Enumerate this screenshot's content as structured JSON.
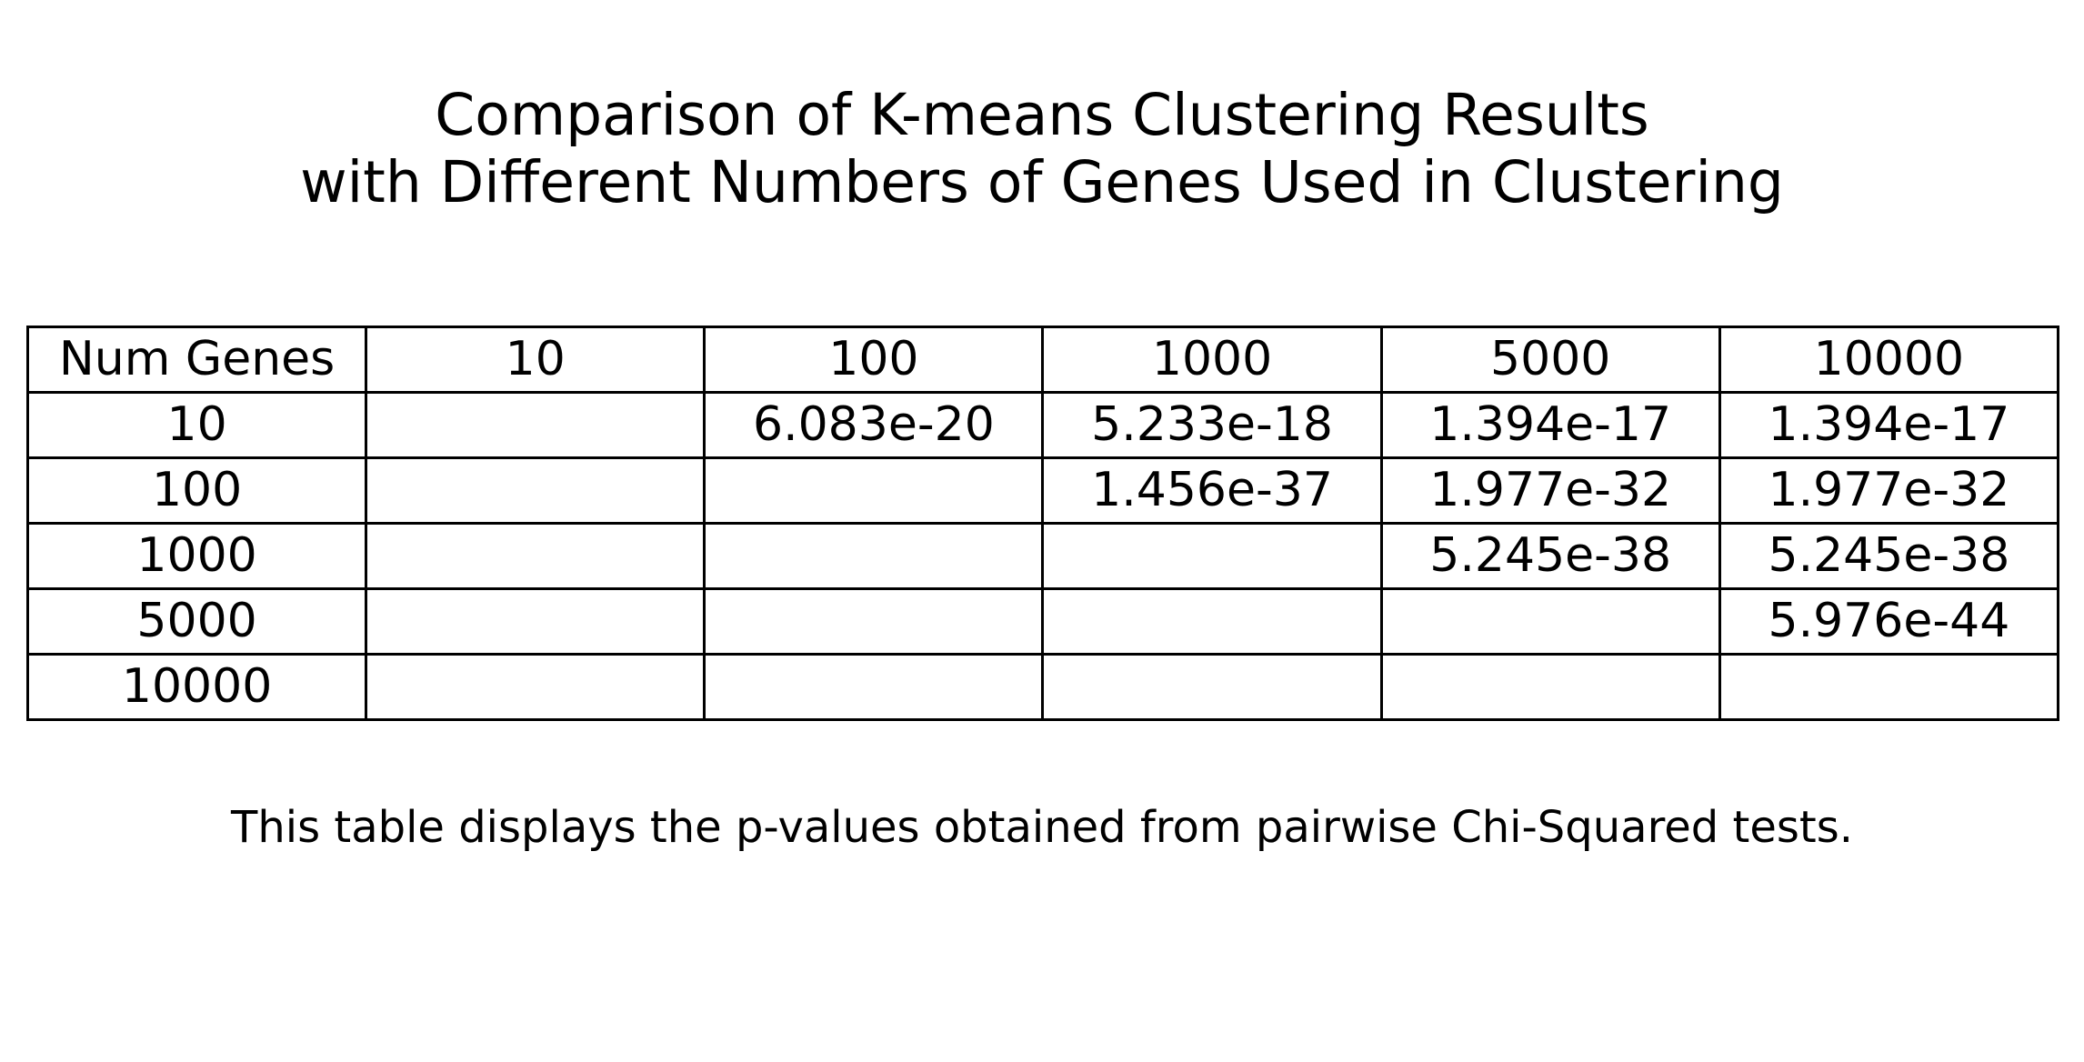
{
  "chart_data": {
    "type": "table",
    "title": [
      "Comparison of K-means Clustering Results",
      "with Different Numbers of Genes Used in Clustering"
    ],
    "columns": [
      "Num Genes",
      "10",
      "100",
      "1000",
      "5000",
      "10000"
    ],
    "rows": [
      [
        "10",
        "",
        "6.083e-20",
        "5.233e-18",
        "1.394e-17",
        "1.394e-17"
      ],
      [
        "100",
        "",
        "",
        "1.456e-37",
        "1.977e-32",
        "1.977e-32"
      ],
      [
        "1000",
        "",
        "",
        "",
        "5.245e-38",
        "5.245e-38"
      ],
      [
        "5000",
        "",
        "",
        "",
        "",
        "5.976e-44"
      ],
      [
        "10000",
        "",
        "",
        "",
        "",
        ""
      ]
    ],
    "caption": "This table displays the p-values obtained from pairwise Chi-Squared tests."
  }
}
